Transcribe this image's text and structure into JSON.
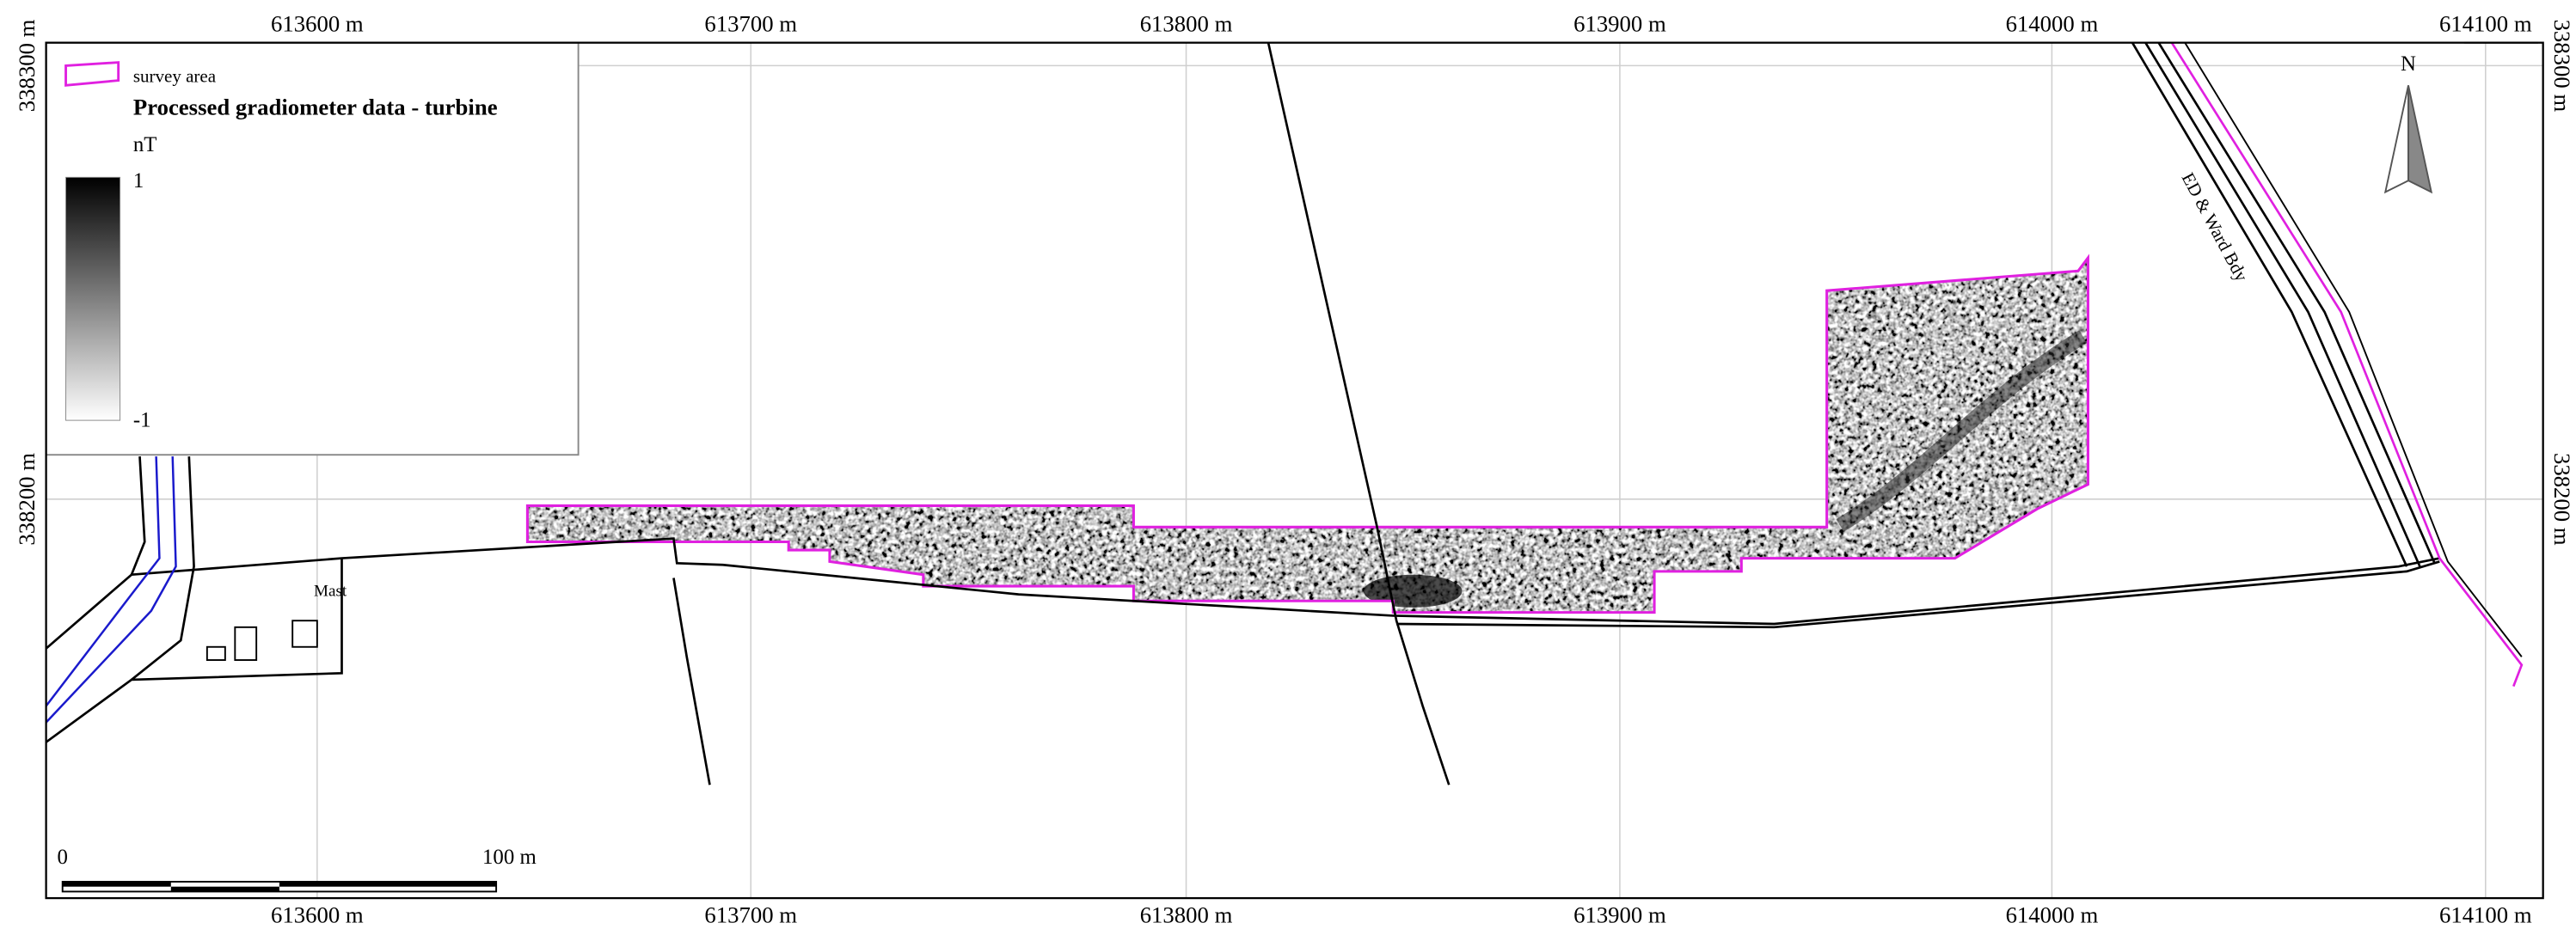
{
  "map": {
    "x_ticks": [
      "613600 m",
      "613700 m",
      "613800 m",
      "613900 m",
      "614000 m",
      "614100 m"
    ],
    "y_ticks": [
      "338300 m",
      "338200 m"
    ],
    "legend": {
      "survey_area": "survey area",
      "title": "Processed gradiometer data - turbine",
      "unit": "nT",
      "max": "1",
      "min": "-1"
    },
    "labels": {
      "mast": "Mast",
      "boundary": "ED & Ward Bdy"
    },
    "north": "N",
    "scale_bar": {
      "start": "0",
      "end": "100 m"
    }
  }
}
